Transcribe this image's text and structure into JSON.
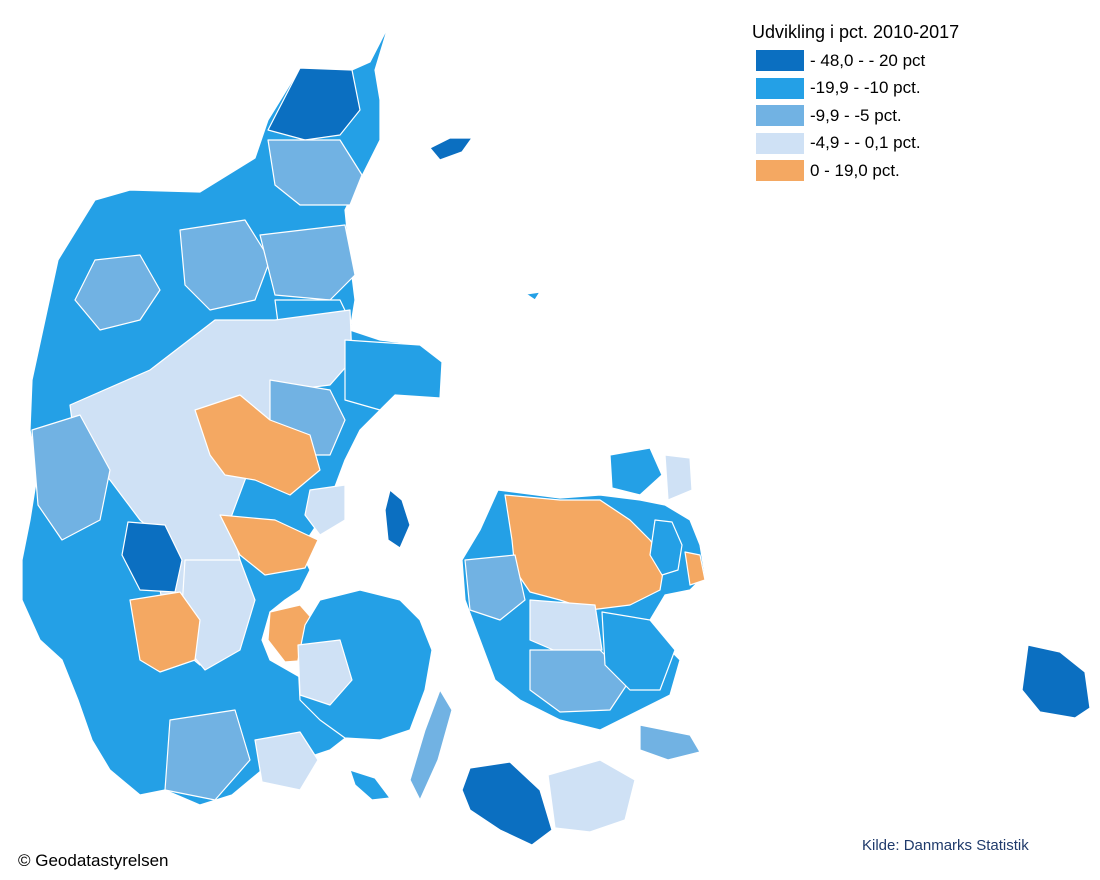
{
  "legend": {
    "title": "Udvikling i pct. 2010-2017",
    "classes": [
      {
        "label": "- 48,0 - - 20 pct",
        "color": "#0b6fc1"
      },
      {
        "label": "-19,9 - -10 pct.",
        "color": "#24a0e6"
      },
      {
        "label": "-9,9 - -5 pct.",
        "color": "#71b2e3"
      },
      {
        "label": "-4,9 - - 0,1 pct.",
        "color": "#cfe1f5"
      },
      {
        "label": "0 - 19,0 pct.",
        "color": "#f4a862"
      }
    ]
  },
  "credit": "© Geodatastyrelsen",
  "source": "Kilde: Danmarks Statistik"
}
